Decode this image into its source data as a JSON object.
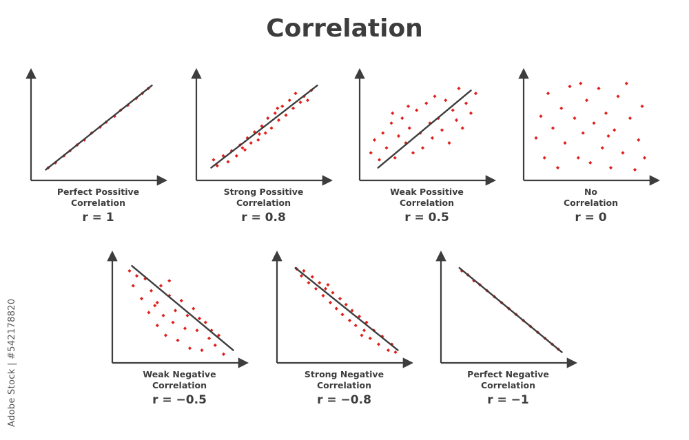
{
  "title": "Correlation",
  "watermark": "Adobe Stock | #542178820",
  "colors": {
    "axis": "#3d3d3d",
    "point": "#e0201b",
    "text": "#3d3d3d"
  },
  "panels": [
    {
      "caption_line1": "Perfect Possitive",
      "caption_line2": "Correlation",
      "r_label": "r = 1",
      "r": 1,
      "trend_line": {
        "start": [
          0.1,
          0.08
        ],
        "end": [
          0.98,
          0.93
        ]
      },
      "points": [
        [
          0.12,
          0.1
        ],
        [
          0.18,
          0.15
        ],
        [
          0.25,
          0.22
        ],
        [
          0.3,
          0.27
        ],
        [
          0.36,
          0.33
        ],
        [
          0.42,
          0.38
        ],
        [
          0.48,
          0.45
        ],
        [
          0.55,
          0.51
        ],
        [
          0.6,
          0.56
        ],
        [
          0.67,
          0.62
        ],
        [
          0.72,
          0.68
        ],
        [
          0.78,
          0.73
        ],
        [
          0.85,
          0.8
        ],
        [
          0.9,
          0.85
        ],
        [
          0.95,
          0.9
        ]
      ]
    },
    {
      "caption_line1": "Strong Possitive",
      "caption_line2": "Correlation",
      "r_label": "r = 0.8",
      "r": 0.8,
      "trend_line": {
        "start": [
          0.1,
          0.1
        ],
        "end": [
          0.98,
          0.93
        ]
      },
      "points": [
        [
          0.12,
          0.18
        ],
        [
          0.15,
          0.12
        ],
        [
          0.2,
          0.22
        ],
        [
          0.24,
          0.16
        ],
        [
          0.27,
          0.27
        ],
        [
          0.31,
          0.22
        ],
        [
          0.34,
          0.33
        ],
        [
          0.38,
          0.28
        ],
        [
          0.4,
          0.4
        ],
        [
          0.43,
          0.35
        ],
        [
          0.46,
          0.46
        ],
        [
          0.49,
          0.38
        ],
        [
          0.52,
          0.52
        ],
        [
          0.55,
          0.45
        ],
        [
          0.57,
          0.6
        ],
        [
          0.6,
          0.5
        ],
        [
          0.63,
          0.65
        ],
        [
          0.66,
          0.58
        ],
        [
          0.69,
          0.72
        ],
        [
          0.72,
          0.63
        ],
        [
          0.75,
          0.78
        ],
        [
          0.78,
          0.7
        ],
        [
          0.8,
          0.85
        ],
        [
          0.84,
          0.76
        ],
        [
          0.87,
          0.82
        ],
        [
          0.9,
          0.78
        ],
        [
          0.93,
          0.88
        ],
        [
          0.5,
          0.44
        ],
        [
          0.36,
          0.3
        ],
        [
          0.65,
          0.7
        ]
      ]
    },
    {
      "caption_line1": "Weak Possitive",
      "caption_line2": "Correlation",
      "r_label": "r = 0.5",
      "r": 0.5,
      "trend_line": {
        "start": [
          0.13,
          0.1
        ],
        "end": [
          0.9,
          0.88
        ]
      },
      "points": [
        [
          0.07,
          0.25
        ],
        [
          0.1,
          0.38
        ],
        [
          0.14,
          0.18
        ],
        [
          0.17,
          0.45
        ],
        [
          0.2,
          0.3
        ],
        [
          0.24,
          0.55
        ],
        [
          0.27,
          0.2
        ],
        [
          0.3,
          0.42
        ],
        [
          0.33,
          0.6
        ],
        [
          0.36,
          0.35
        ],
        [
          0.39,
          0.5
        ],
        [
          0.42,
          0.25
        ],
        [
          0.45,
          0.68
        ],
        [
          0.48,
          0.45
        ],
        [
          0.5,
          0.3
        ],
        [
          0.53,
          0.75
        ],
        [
          0.56,
          0.55
        ],
        [
          0.58,
          0.4
        ],
        [
          0.6,
          0.82
        ],
        [
          0.63,
          0.6
        ],
        [
          0.66,
          0.48
        ],
        [
          0.69,
          0.78
        ],
        [
          0.72,
          0.35
        ],
        [
          0.75,
          0.68
        ],
        [
          0.78,
          0.58
        ],
        [
          0.8,
          0.9
        ],
        [
          0.83,
          0.5
        ],
        [
          0.86,
          0.75
        ],
        [
          0.9,
          0.65
        ],
        [
          0.94,
          0.85
        ],
        [
          0.38,
          0.72
        ],
        [
          0.25,
          0.65
        ]
      ]
    },
    {
      "caption_line1": "No",
      "caption_line2": "Correlation",
      "r_label": "r = 0",
      "r": 0,
      "trend_line": null,
      "points": [
        [
          0.08,
          0.4
        ],
        [
          0.12,
          0.62
        ],
        [
          0.15,
          0.2
        ],
        [
          0.18,
          0.85
        ],
        [
          0.22,
          0.5
        ],
        [
          0.26,
          0.1
        ],
        [
          0.29,
          0.7
        ],
        [
          0.32,
          0.35
        ],
        [
          0.36,
          0.92
        ],
        [
          0.4,
          0.6
        ],
        [
          0.43,
          0.2
        ],
        [
          0.47,
          0.45
        ],
        [
          0.5,
          0.78
        ],
        [
          0.53,
          0.15
        ],
        [
          0.56,
          0.55
        ],
        [
          0.6,
          0.9
        ],
        [
          0.63,
          0.3
        ],
        [
          0.66,
          0.65
        ],
        [
          0.7,
          0.1
        ],
        [
          0.73,
          0.48
        ],
        [
          0.76,
          0.82
        ],
        [
          0.8,
          0.25
        ],
        [
          0.83,
          0.95
        ],
        [
          0.86,
          0.6
        ],
        [
          0.9,
          0.08
        ],
        [
          0.93,
          0.38
        ],
        [
          0.96,
          0.72
        ],
        [
          0.98,
          0.2
        ],
        [
          0.45,
          0.95
        ],
        [
          0.68,
          0.42
        ]
      ]
    },
    {
      "caption_line1": "Weak Negative",
      "caption_line2": "Correlation",
      "r_label": "r = −0.5",
      "r": -0.5,
      "trend_line": {
        "start": [
          0.14,
          0.95
        ],
        "end": [
          0.98,
          0.1
        ]
      },
      "points": [
        [
          0.12,
          0.9
        ],
        [
          0.15,
          0.75
        ],
        [
          0.18,
          0.85
        ],
        [
          0.22,
          0.62
        ],
        [
          0.25,
          0.82
        ],
        [
          0.28,
          0.48
        ],
        [
          0.3,
          0.7
        ],
        [
          0.33,
          0.55
        ],
        [
          0.35,
          0.35
        ],
        [
          0.38,
          0.75
        ],
        [
          0.4,
          0.45
        ],
        [
          0.42,
          0.25
        ],
        [
          0.45,
          0.65
        ],
        [
          0.48,
          0.38
        ],
        [
          0.5,
          0.5
        ],
        [
          0.52,
          0.2
        ],
        [
          0.55,
          0.6
        ],
        [
          0.58,
          0.32
        ],
        [
          0.6,
          0.45
        ],
        [
          0.62,
          0.12
        ],
        [
          0.65,
          0.52
        ],
        [
          0.68,
          0.3
        ],
        [
          0.7,
          0.42
        ],
        [
          0.72,
          0.1
        ],
        [
          0.75,
          0.38
        ],
        [
          0.78,
          0.22
        ],
        [
          0.8,
          0.3
        ],
        [
          0.83,
          0.15
        ],
        [
          0.86,
          0.25
        ],
        [
          0.9,
          0.06
        ],
        [
          0.45,
          0.8
        ],
        [
          0.35,
          0.58
        ]
      ]
    },
    {
      "caption_line1": "Strong Negative",
      "caption_line2": "Correlation",
      "r_label": "r = −0.8",
      "r": -0.8,
      "trend_line": {
        "start": [
          0.13,
          0.93
        ],
        "end": [
          0.98,
          0.1
        ]
      },
      "points": [
        [
          0.14,
          0.92
        ],
        [
          0.18,
          0.85
        ],
        [
          0.2,
          0.9
        ],
        [
          0.24,
          0.78
        ],
        [
          0.27,
          0.84
        ],
        [
          0.3,
          0.72
        ],
        [
          0.33,
          0.78
        ],
        [
          0.36,
          0.65
        ],
        [
          0.38,
          0.72
        ],
        [
          0.42,
          0.58
        ],
        [
          0.44,
          0.68
        ],
        [
          0.47,
          0.52
        ],
        [
          0.5,
          0.62
        ],
        [
          0.52,
          0.46
        ],
        [
          0.55,
          0.56
        ],
        [
          0.58,
          0.4
        ],
        [
          0.6,
          0.5
        ],
        [
          0.63,
          0.35
        ],
        [
          0.66,
          0.44
        ],
        [
          0.7,
          0.3
        ],
        [
          0.72,
          0.38
        ],
        [
          0.75,
          0.22
        ],
        [
          0.78,
          0.3
        ],
        [
          0.82,
          0.16
        ],
        [
          0.85,
          0.24
        ],
        [
          0.9,
          0.1
        ],
        [
          0.93,
          0.16
        ],
        [
          0.96,
          0.08
        ],
        [
          0.4,
          0.76
        ],
        [
          0.68,
          0.25
        ]
      ]
    },
    {
      "caption_line1": "Perfect Negative",
      "caption_line2": "Correlation",
      "r_label": "r = −1",
      "r": -1,
      "trend_line": {
        "start": [
          0.13,
          0.93
        ],
        "end": [
          0.98,
          0.08
        ]
      },
      "points": [
        [
          0.15,
          0.9
        ],
        [
          0.2,
          0.86
        ],
        [
          0.25,
          0.8
        ],
        [
          0.3,
          0.76
        ],
        [
          0.36,
          0.7
        ],
        [
          0.42,
          0.64
        ],
        [
          0.48,
          0.58
        ],
        [
          0.54,
          0.52
        ],
        [
          0.6,
          0.46
        ],
        [
          0.66,
          0.4
        ],
        [
          0.72,
          0.34
        ],
        [
          0.78,
          0.28
        ],
        [
          0.84,
          0.22
        ],
        [
          0.9,
          0.16
        ],
        [
          0.95,
          0.11
        ]
      ]
    }
  ]
}
